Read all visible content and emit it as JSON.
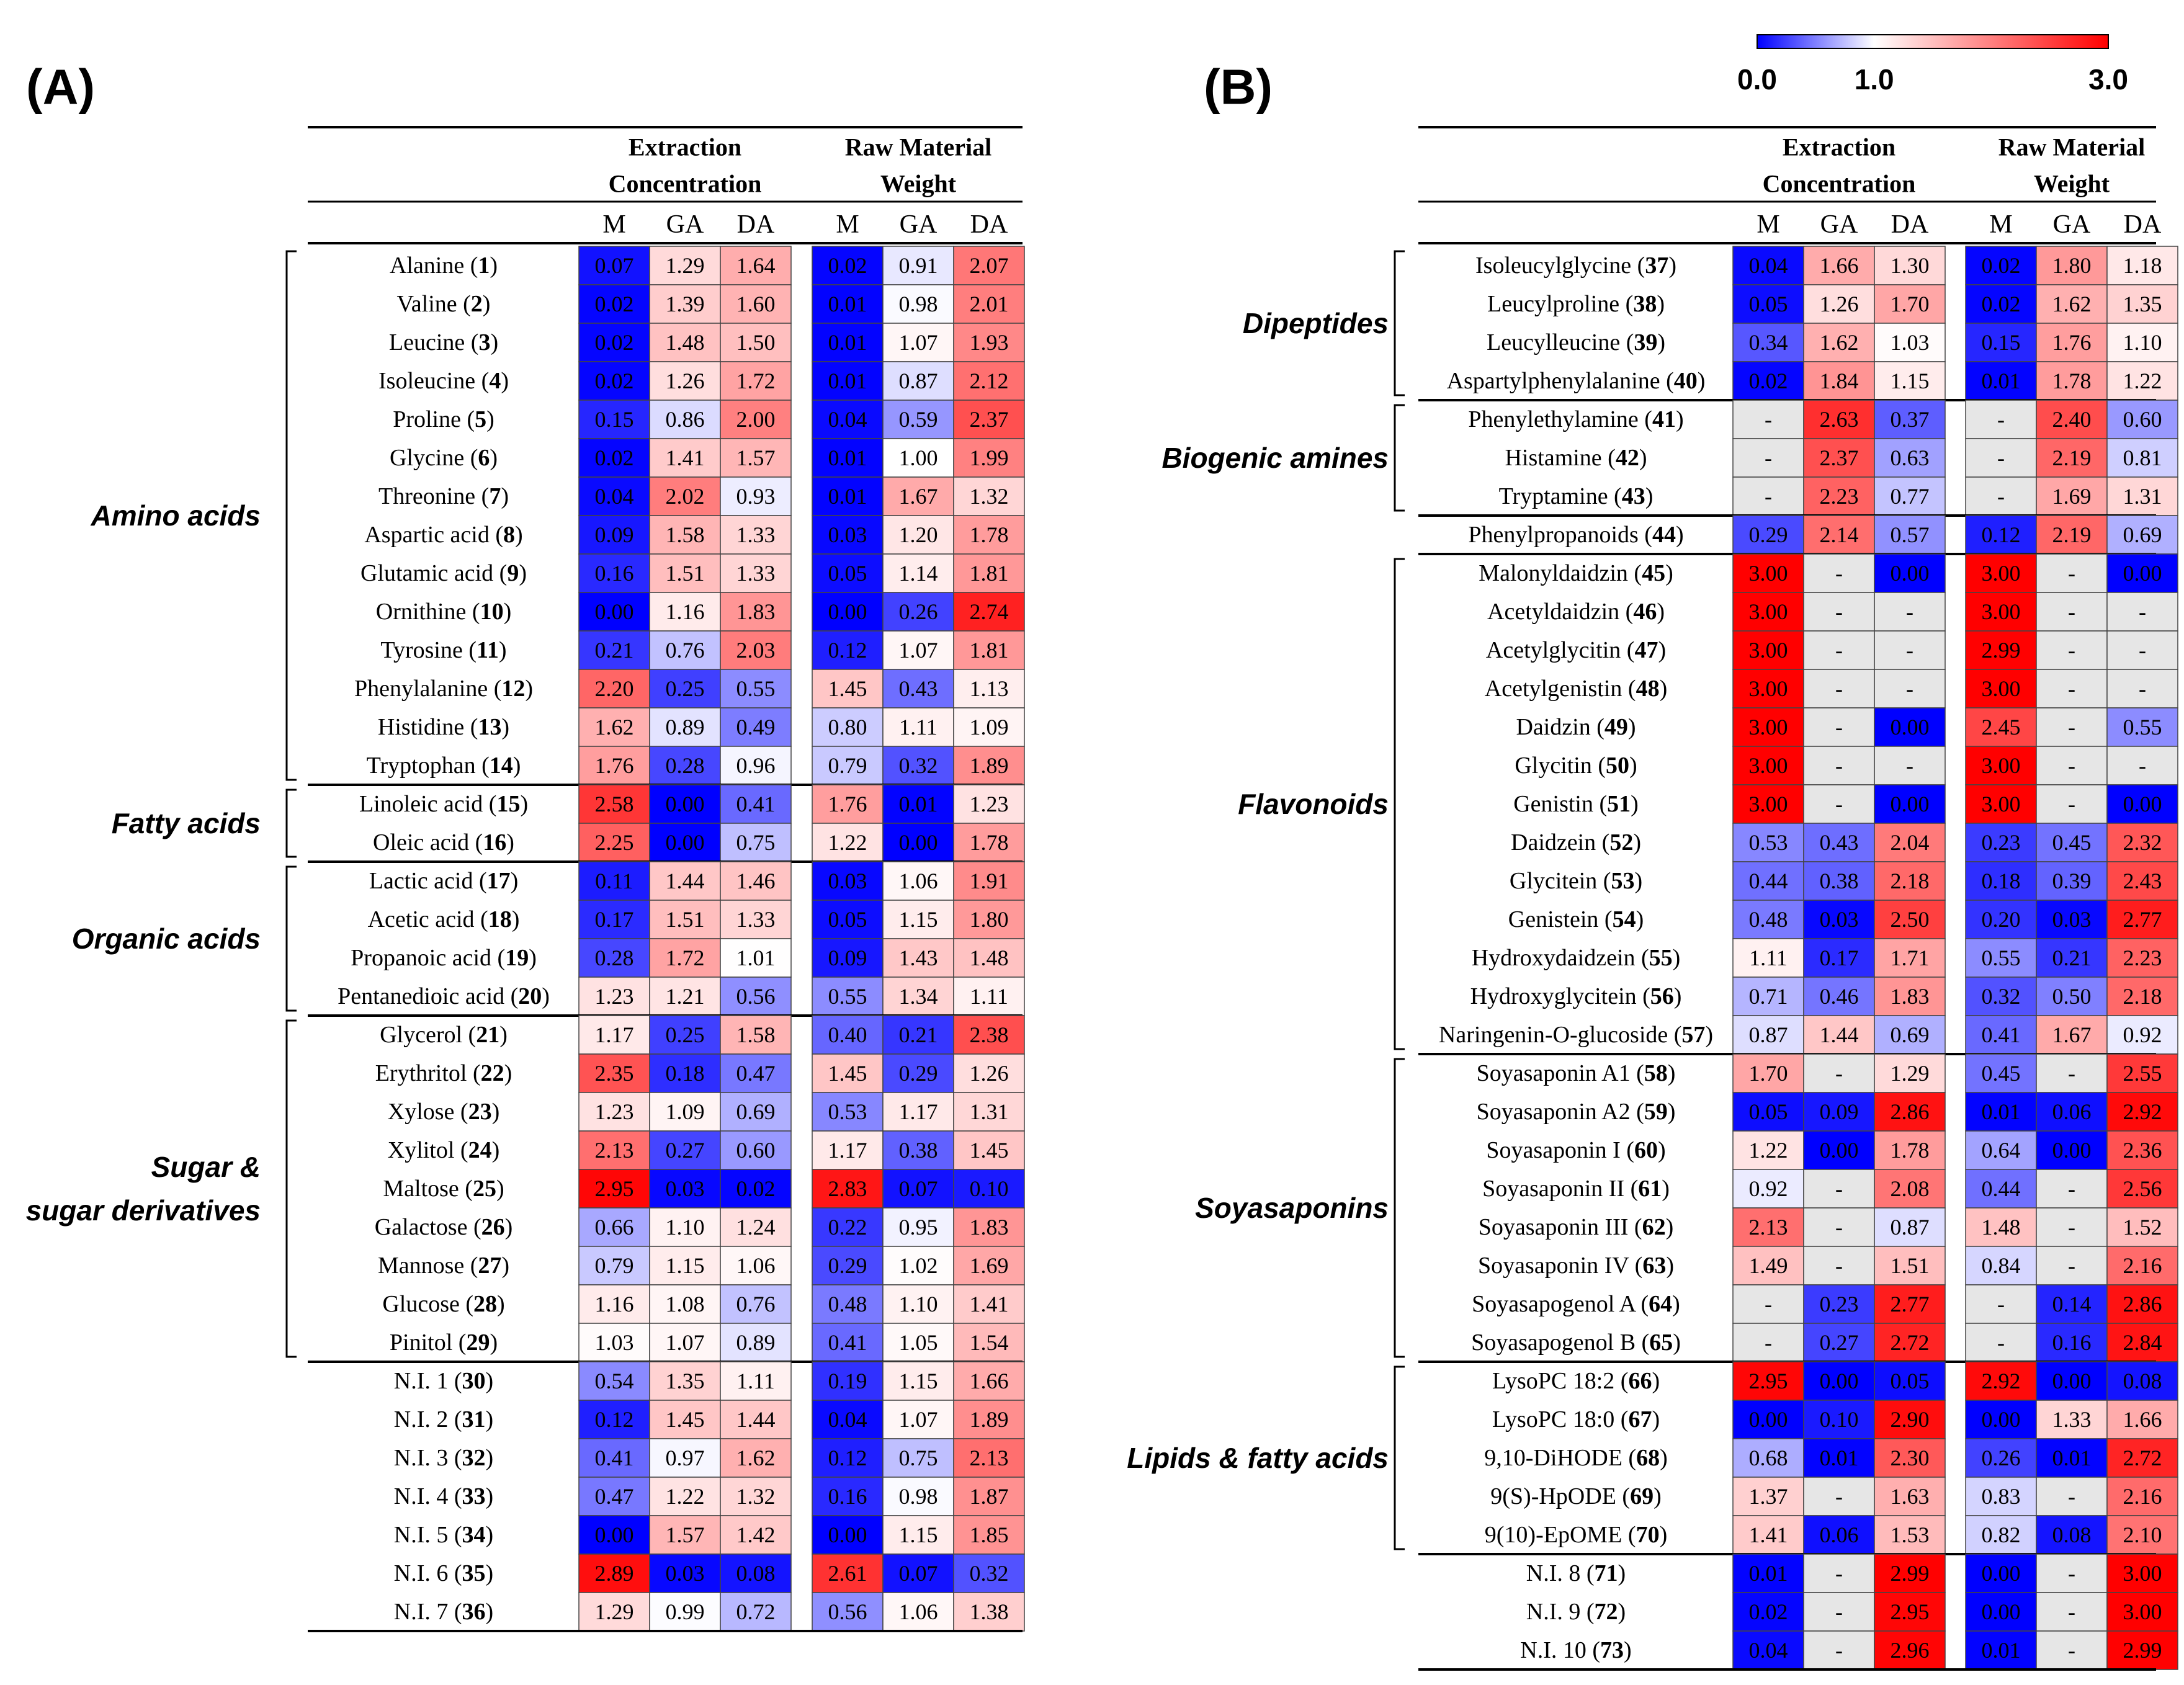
{
  "panels": [
    {
      "label": "(A)",
      "header": {
        "group1": [
          "Extraction",
          "Concentration"
        ],
        "group2": [
          "Raw Material",
          "Weight"
        ]
      },
      "columns": [
        "M",
        "GA",
        "DA",
        "M",
        "GA",
        "DA"
      ],
      "groups": [
        {
          "name": [
            "Amino acids"
          ],
          "rows": [
            [
              "Alanine",
              "1",
              "0.07",
              "1.29",
              "1.64",
              "0.02",
              "0.91",
              "2.07"
            ],
            [
              "Valine",
              "2",
              "0.02",
              "1.39",
              "1.60",
              "0.01",
              "0.98",
              "2.01"
            ],
            [
              "Leucine",
              "3",
              "0.02",
              "1.48",
              "1.50",
              "0.01",
              "1.07",
              "1.93"
            ],
            [
              "Isoleucine",
              "4",
              "0.02",
              "1.26",
              "1.72",
              "0.01",
              "0.87",
              "2.12"
            ],
            [
              "Proline",
              "5",
              "0.15",
              "0.86",
              "2.00",
              "0.04",
              "0.59",
              "2.37"
            ],
            [
              "Glycine",
              "6",
              "0.02",
              "1.41",
              "1.57",
              "0.01",
              "1.00",
              "1.99"
            ],
            [
              "Threonine",
              "7",
              "0.04",
              "2.02",
              "0.93",
              "0.01",
              "1.67",
              "1.32"
            ],
            [
              "Aspartic acid",
              "8",
              "0.09",
              "1.58",
              "1.33",
              "0.03",
              "1.20",
              "1.78"
            ],
            [
              "Glutamic acid",
              "9",
              "0.16",
              "1.51",
              "1.33",
              "0.05",
              "1.14",
              "1.81"
            ],
            [
              "Ornithine",
              "10",
              "0.00",
              "1.16",
              "1.83",
              "0.00",
              "0.26",
              "2.74"
            ],
            [
              "Tyrosine",
              "11",
              "0.21",
              "0.76",
              "2.03",
              "0.12",
              "1.07",
              "1.81"
            ],
            [
              "Phenylalanine",
              "12",
              "2.20",
              "0.25",
              "0.55",
              "1.45",
              "0.43",
              "1.13"
            ],
            [
              "Histidine",
              "13",
              "1.62",
              "0.89",
              "0.49",
              "0.80",
              "1.11",
              "1.09"
            ],
            [
              "Tryptophan",
              "14",
              "1.76",
              "0.28",
              "0.96",
              "0.79",
              "0.32",
              "1.89"
            ]
          ]
        },
        {
          "name": [
            "Fatty acids"
          ],
          "rows": [
            [
              "Linoleic acid",
              "15",
              "2.58",
              "0.00",
              "0.41",
              "1.76",
              "0.01",
              "1.23"
            ],
            [
              "Oleic acid",
              "16",
              "2.25",
              "0.00",
              "0.75",
              "1.22",
              "0.00",
              "1.78"
            ]
          ]
        },
        {
          "name": [
            "Organic acids"
          ],
          "rows": [
            [
              "Lactic acid",
              "17",
              "0.11",
              "1.44",
              "1.46",
              "0.03",
              "1.06",
              "1.91"
            ],
            [
              "Acetic acid",
              "18",
              "0.17",
              "1.51",
              "1.33",
              "0.05",
              "1.15",
              "1.80"
            ],
            [
              "Propanoic acid",
              "19",
              "0.28",
              "1.72",
              "1.01",
              "0.09",
              "1.43",
              "1.48"
            ],
            [
              "Pentanedioic acid",
              "20",
              "1.23",
              "1.21",
              "0.56",
              "0.55",
              "1.34",
              "1.11"
            ]
          ]
        },
        {
          "name": [
            "Sugar &",
            "sugar derivatives"
          ],
          "rows": [
            [
              "Glycerol",
              "21",
              "1.17",
              "0.25",
              "1.58",
              "0.40",
              "0.21",
              "2.38"
            ],
            [
              "Erythritol",
              "22",
              "2.35",
              "0.18",
              "0.47",
              "1.45",
              "0.29",
              "1.26"
            ],
            [
              "Xylose",
              "23",
              "1.23",
              "1.09",
              "0.69",
              "0.53",
              "1.17",
              "1.31"
            ],
            [
              "Xylitol",
              "24",
              "2.13",
              "0.27",
              "0.60",
              "1.17",
              "0.38",
              "1.45"
            ],
            [
              "Maltose",
              "25",
              "2.95",
              "0.03",
              "0.02",
              "2.83",
              "0.07",
              "0.10"
            ],
            [
              "Galactose",
              "26",
              "0.66",
              "1.10",
              "1.24",
              "0.22",
              "0.95",
              "1.83"
            ],
            [
              "Mannose",
              "27",
              "0.79",
              "1.15",
              "1.06",
              "0.29",
              "1.02",
              "1.69"
            ],
            [
              "Glucose",
              "28",
              "1.16",
              "1.08",
              "0.76",
              "0.48",
              "1.10",
              "1.41"
            ],
            [
              "Pinitol",
              "29",
              "1.03",
              "1.07",
              "0.89",
              "0.41",
              "1.05",
              "1.54"
            ]
          ]
        },
        {
          "name": [],
          "rows": [
            [
              "N.I. 1",
              "30",
              "0.54",
              "1.35",
              "1.11",
              "0.19",
              "1.15",
              "1.66"
            ],
            [
              "N.I. 2",
              "31",
              "0.12",
              "1.45",
              "1.44",
              "0.04",
              "1.07",
              "1.89"
            ],
            [
              "N.I. 3",
              "32",
              "0.41",
              "0.97",
              "1.62",
              "0.12",
              "0.75",
              "2.13"
            ],
            [
              "N.I. 4",
              "33",
              "0.47",
              "1.22",
              "1.32",
              "0.16",
              "0.98",
              "1.87"
            ],
            [
              "N.I. 5",
              "34",
              "0.00",
              "1.57",
              "1.42",
              "0.00",
              "1.15",
              "1.85"
            ],
            [
              "N.I. 6",
              "35",
              "2.89",
              "0.03",
              "0.08",
              "2.61",
              "0.07",
              "0.32"
            ],
            [
              "N.I. 7",
              "36",
              "1.29",
              "0.99",
              "0.72",
              "0.56",
              "1.06",
              "1.38"
            ]
          ]
        }
      ]
    },
    {
      "label": "(B)",
      "header": {
        "group1": [
          "Extraction",
          "Concentration"
        ],
        "group2": [
          "Raw Material",
          "Weight"
        ]
      },
      "columns": [
        "M",
        "GA",
        "DA",
        "M",
        "GA",
        "DA"
      ],
      "groups": [
        {
          "name": [
            "Dipeptides"
          ],
          "rows": [
            [
              "Isoleucylglycine",
              "37",
              "0.04",
              "1.66",
              "1.30",
              "0.02",
              "1.80",
              "1.18"
            ],
            [
              "Leucylproline",
              "38",
              "0.05",
              "1.26",
              "1.70",
              "0.02",
              "1.62",
              "1.35"
            ],
            [
              "Leucylleucine",
              "39",
              "0.34",
              "1.62",
              "1.03",
              "0.15",
              "1.76",
              "1.10"
            ],
            [
              "Aspartylphenylalanine",
              "40",
              "0.02",
              "1.84",
              "1.15",
              "0.01",
              "1.78",
              "1.22"
            ]
          ]
        },
        {
          "name": [
            "Biogenic amines"
          ],
          "rows": [
            [
              "Phenylethylamine",
              "41",
              "-",
              "2.63",
              "0.37",
              "-",
              "2.40",
              "0.60"
            ],
            [
              "Histamine",
              "42",
              "-",
              "2.37",
              "0.63",
              "-",
              "2.19",
              "0.81"
            ],
            [
              "Tryptamine",
              "43",
              "-",
              "2.23",
              "0.77",
              "-",
              "1.69",
              "1.31"
            ]
          ]
        },
        {
          "name": [],
          "rows": [
            [
              "Phenylpropanoids",
              "44",
              "0.29",
              "2.14",
              "0.57",
              "0.12",
              "2.19",
              "0.69"
            ]
          ]
        },
        {
          "name": [
            "Flavonoids"
          ],
          "rows": [
            [
              "Malonyldaidzin",
              "45",
              "3.00",
              "-",
              "0.00",
              "3.00",
              "-",
              "0.00"
            ],
            [
              "Acetyldaidzin",
              "46",
              "3.00",
              "-",
              "-",
              "3.00",
              "-",
              "-"
            ],
            [
              "Acetylglycitin",
              "47",
              "3.00",
              "-",
              "-",
              "2.99",
              "-",
              "-"
            ],
            [
              "Acetylgenistin",
              "48",
              "3.00",
              "-",
              "-",
              "3.00",
              "-",
              "-"
            ],
            [
              "Daidzin",
              "49",
              "3.00",
              "-",
              "0.00",
              "2.45",
              "-",
              "0.55"
            ],
            [
              "Glycitin",
              "50",
              "3.00",
              "-",
              "-",
              "3.00",
              "-",
              "-"
            ],
            [
              "Genistin",
              "51",
              "3.00",
              "-",
              "0.00",
              "3.00",
              "-",
              "0.00"
            ],
            [
              "Daidzein",
              "52",
              "0.53",
              "0.43",
              "2.04",
              "0.23",
              "0.45",
              "2.32"
            ],
            [
              "Glycitein",
              "53",
              "0.44",
              "0.38",
              "2.18",
              "0.18",
              "0.39",
              "2.43"
            ],
            [
              "Genistein",
              "54",
              "0.48",
              "0.03",
              "2.50",
              "0.20",
              "0.03",
              "2.77"
            ],
            [
              "Hydroxydaidzein",
              "55",
              "1.11",
              "0.17",
              "1.71",
              "0.55",
              "0.21",
              "2.23"
            ],
            [
              "Hydroxyglycitein",
              "56",
              "0.71",
              "0.46",
              "1.83",
              "0.32",
              "0.50",
              "2.18"
            ],
            [
              "Naringenin-O-glucoside",
              "57",
              "0.87",
              "1.44",
              "0.69",
              "0.41",
              "1.67",
              "0.92"
            ]
          ]
        },
        {
          "name": [
            "Soyasaponins"
          ],
          "rows": [
            [
              "Soyasaponin A1",
              "58",
              "1.70",
              "-",
              "1.29",
              "0.45",
              "-",
              "2.55"
            ],
            [
              "Soyasaponin A2",
              "59",
              "0.05",
              "0.09",
              "2.86",
              "0.01",
              "0.06",
              "2.92"
            ],
            [
              "Soyasaponin I",
              "60",
              "1.22",
              "0.00",
              "1.78",
              "0.64",
              "0.00",
              "2.36"
            ],
            [
              "Soyasaponin II",
              "61",
              "0.92",
              "-",
              "2.08",
              "0.44",
              "-",
              "2.56"
            ],
            [
              "Soyasaponin III",
              "62",
              "2.13",
              "-",
              "0.87",
              "1.48",
              "-",
              "1.52"
            ],
            [
              "Soyasaponin IV",
              "63",
              "1.49",
              "-",
              "1.51",
              "0.84",
              "-",
              "2.16"
            ],
            [
              "Soyasapogenol A",
              "64",
              "-",
              "0.23",
              "2.77",
              "-",
              "0.14",
              "2.86"
            ],
            [
              "Soyasapogenol B",
              "65",
              "-",
              "0.27",
              "2.72",
              "-",
              "0.16",
              "2.84"
            ]
          ]
        },
        {
          "name": [
            "Lipids & fatty acids"
          ],
          "rows": [
            [
              "LysoPC 18:2",
              "66",
              "2.95",
              "0.00",
              "0.05",
              "2.92",
              "0.00",
              "0.08"
            ],
            [
              "LysoPC 18:0",
              "67",
              "0.00",
              "0.10",
              "2.90",
              "0.00",
              "1.33",
              "1.66"
            ],
            [
              "9,10-DiHODE",
              "68",
              "0.68",
              "0.01",
              "2.30",
              "0.26",
              "0.01",
              "2.72"
            ],
            [
              "9(S)-HpODE",
              "69",
              "1.37",
              "-",
              "1.63",
              "0.83",
              "-",
              "2.16"
            ],
            [
              "9(10)-EpOME",
              "70",
              "1.41",
              "0.06",
              "1.53",
              "0.82",
              "0.08",
              "2.10"
            ]
          ]
        },
        {
          "name": [],
          "rows": [
            [
              "N.I. 8",
              "71",
              "0.01",
              "-",
              "2.99",
              "0.00",
              "-",
              "3.00"
            ],
            [
              "N.I. 9",
              "72",
              "0.02",
              "-",
              "2.95",
              "0.00",
              "-",
              "3.00"
            ],
            [
              "N.I. 10",
              "73",
              "0.04",
              "-",
              "2.96",
              "0.01",
              "-",
              "2.99"
            ]
          ]
        }
      ]
    }
  ],
  "colorbar": {
    "labels": [
      "0.0",
      "1.0",
      "3.0"
    ],
    "values": [
      0,
      1,
      3
    ],
    "colors": [
      "#0000ff",
      "#ffffff",
      "#ff0000"
    ]
  },
  "chart_data": {
    "type": "heatmap",
    "title": "",
    "colorscale": {
      "min": 0.0,
      "mid": 1.0,
      "max": 3.0,
      "low_color": "#0000ff",
      "mid_color": "#ffffff",
      "high_color": "#ff0000",
      "missing_color": "#e6e6e6"
    },
    "note": "Cell values per compound and column are listed under panels[].groups[].rows (name, number, then M, GA, DA for Extraction Concentration and M, GA, DA for Raw Material Weight)."
  }
}
